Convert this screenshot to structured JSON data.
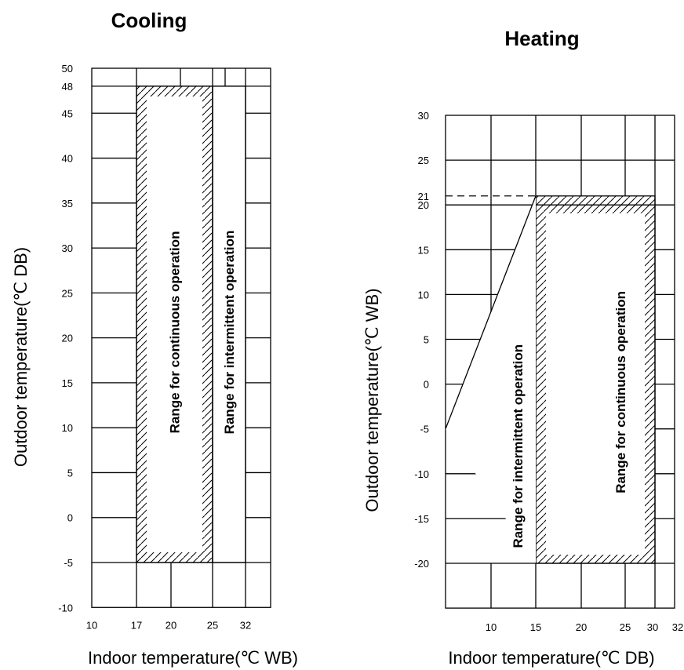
{
  "chart_data": [
    {
      "type": "area",
      "title": "Cooling",
      "xlabel": "Indoor temperature(℃ WB)",
      "ylabel": "Outdoor temperature(℃ DB)",
      "x_tick_labels": [
        "10",
        "17",
        "20",
        "25",
        "32"
      ],
      "y_tick_labels": [
        "50",
        "48",
        "45",
        "40",
        "35",
        "30",
        "25",
        "20",
        "15",
        "10",
        "5",
        "0",
        "-5",
        "-10"
      ],
      "xlim": [
        10,
        32
      ],
      "ylim": [
        -10,
        50
      ],
      "grid": true,
      "regions": [
        {
          "label": "Range for continuous operation",
          "x": [
            17,
            25
          ],
          "y": [
            -5,
            48
          ],
          "hatched": true
        },
        {
          "label": "Range for intermittent operation",
          "x": [
            25,
            32
          ],
          "y": [
            -5,
            48
          ],
          "hatched": false
        }
      ]
    },
    {
      "type": "area",
      "title": "Heating",
      "xlabel": "Indoor temperature(℃ DB)",
      "ylabel": "Outdoor temperature(℃ WB)",
      "x_tick_labels": [
        "10",
        "15",
        "20",
        "25",
        "30",
        "32"
      ],
      "y_tick_labels": [
        "30",
        "25",
        "21",
        "20",
        "15",
        "10",
        "5",
        "0",
        "-5",
        "-10",
        "-15",
        "-20"
      ],
      "xlim": [
        5,
        32
      ],
      "ylim": [
        -25,
        30
      ],
      "grid": true,
      "regions": [
        {
          "label": "Range for continuous operation",
          "x": [
            15,
            30
          ],
          "y": [
            -20,
            21
          ],
          "hatched": true
        },
        {
          "label": "Range for intermittent operation",
          "polygon": [
            [
              5,
              -5
            ],
            [
              15,
              21
            ],
            [
              15,
              -20
            ]
          ],
          "hatched": false
        }
      ],
      "reference_line": {
        "y": 21,
        "style": "dashed",
        "x": [
          5,
          15
        ]
      }
    }
  ]
}
